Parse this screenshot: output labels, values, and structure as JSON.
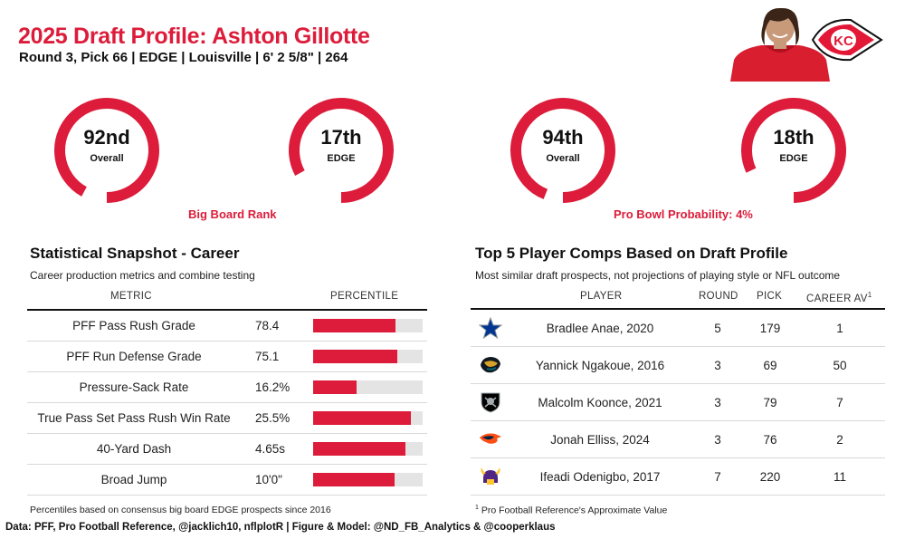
{
  "header": {
    "title": "2025 Draft Profile: Ashton Gillotte",
    "subtitle": "Round 3, Pick 66 | EDGE | Louisville | 6' 2 5/8\" | 264"
  },
  "colors": {
    "accent": "#dc1c3a",
    "track": "#e4e4e4",
    "chiefs_red": "#e31837"
  },
  "icons": {
    "headshot": "player-headshot",
    "team_logo": "chiefs-arrowhead-logo"
  },
  "rankings": {
    "big_board": {
      "label": "Big Board Rank",
      "overall": {
        "value": "92nd",
        "label": "Overall",
        "percentile": 0.92
      },
      "position": {
        "value": "17th",
        "label": "EDGE",
        "percentile": 0.83
      }
    },
    "pro_bowl": {
      "label": "Pro Bowl Probability: 4%",
      "overall": {
        "value": "94th",
        "label": "Overall",
        "percentile": 0.94
      },
      "position": {
        "value": "18th",
        "label": "EDGE",
        "percentile": 0.82
      }
    }
  },
  "stats": {
    "title": "Statistical Snapshot - Career",
    "subtitle": "Career production metrics and combine testing",
    "col_metric": "METRIC",
    "col_percentile": "PERCENTILE",
    "rows": [
      {
        "metric": "PFF Pass Rush Grade",
        "value": "78.4",
        "percentile": 75
      },
      {
        "metric": "PFF Run Defense Grade",
        "value": "75.1",
        "percentile": 77
      },
      {
        "metric": "Pressure-Sack Rate",
        "value": "16.2%",
        "percentile": 40
      },
      {
        "metric": "True Pass Set Pass Rush Win Rate",
        "value": "25.5%",
        "percentile": 89
      },
      {
        "metric": "40-Yard Dash",
        "value": "4.65s",
        "percentile": 84
      },
      {
        "metric": "Broad Jump",
        "value": "10'0\"",
        "percentile": 74
      }
    ],
    "footnote": "Percentiles based on consensus big board EDGE prospects since 2016"
  },
  "comps": {
    "title": "Top 5 Player Comps Based on Draft Profile",
    "subtitle": "Most similar draft prospects, not projections of playing style or NFL outcome",
    "col_player": "PLAYER",
    "col_round": "ROUND",
    "col_pick": "PICK",
    "col_av": "CAREER AV",
    "av_marker": "1",
    "rows": [
      {
        "player": "Bradlee Anae, 2020",
        "round": "5",
        "pick": "179",
        "av": "1",
        "logo": "cowboys-star-icon"
      },
      {
        "player": "Yannick Ngakoue, 2016",
        "round": "3",
        "pick": "69",
        "av": "50",
        "logo": "jaguars-head-icon"
      },
      {
        "player": "Malcolm Koonce, 2021",
        "round": "3",
        "pick": "79",
        "av": "7",
        "logo": "raiders-shield-icon"
      },
      {
        "player": "Jonah Elliss, 2024",
        "round": "3",
        "pick": "76",
        "av": "2",
        "logo": "broncos-horse-icon"
      },
      {
        "player": "Ifeadi Odenigbo, 2017",
        "round": "7",
        "pick": "220",
        "av": "11",
        "logo": "vikings-helmet-icon"
      }
    ],
    "footnote_marker": "1",
    "footnote": "Pro Football Reference's Approximate Value"
  },
  "footer": "Data: PFF, Pro Football Reference, @jacklich10, nflplotR | Figure & Model: @ND_FB_Analytics & @cooperklaus",
  "chart_data": [
    {
      "type": "bar",
      "title": "Statistical Snapshot - Career",
      "categories": [
        "PFF Pass Rush Grade",
        "PFF Run Defense Grade",
        "Pressure-Sack Rate",
        "True Pass Set Pass Rush Win Rate",
        "40-Yard Dash",
        "Broad Jump"
      ],
      "values": [
        75,
        77,
        40,
        89,
        84,
        74
      ],
      "ylim": [
        0,
        100
      ]
    },
    {
      "type": "pie",
      "title": "Big Board Rank",
      "categories": [
        "Overall",
        "EDGE"
      ],
      "values": [
        0.92,
        0.83
      ]
    },
    {
      "type": "pie",
      "title": "Pro Bowl Probability: 4%",
      "categories": [
        "Overall",
        "EDGE"
      ],
      "values": [
        0.94,
        0.82
      ]
    },
    {
      "type": "table",
      "title": "Top 5 Player Comps Based on Draft Profile",
      "columns": [
        "PLAYER",
        "ROUND",
        "PICK",
        "CAREER AV"
      ],
      "rows": [
        [
          "Bradlee Anae, 2020",
          5,
          179,
          1
        ],
        [
          "Yannick Ngakoue, 2016",
          3,
          69,
          50
        ],
        [
          "Malcolm Koonce, 2021",
          3,
          79,
          7
        ],
        [
          "Jonah Elliss, 2024",
          3,
          76,
          2
        ],
        [
          "Ifeadi Odenigbo, 2017",
          7,
          220,
          11
        ]
      ]
    }
  ]
}
